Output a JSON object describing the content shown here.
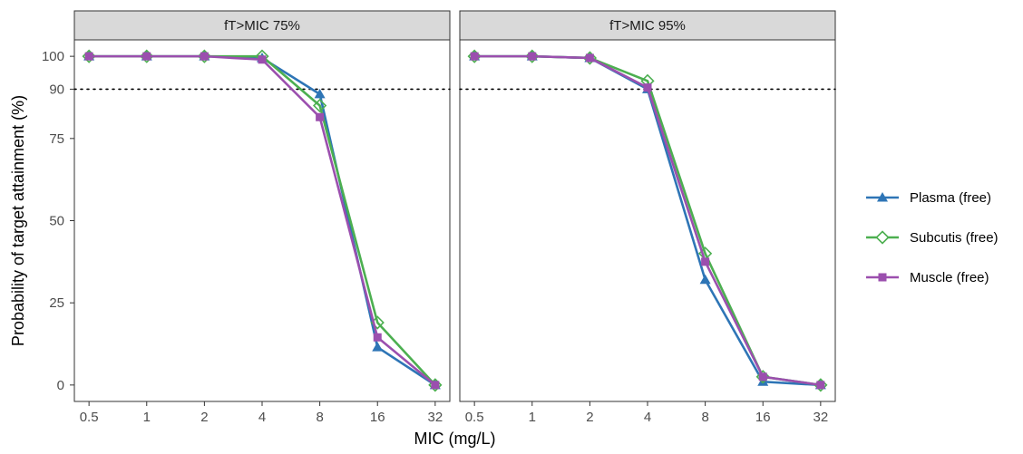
{
  "chart_data": {
    "type": "line",
    "ylabel": "Probability of target attainment (%)",
    "xlabel": "MIC (mg/L)",
    "x_categories": [
      "0.5",
      "1",
      "2",
      "4",
      "8",
      "16",
      "32"
    ],
    "y_ticks": [
      0,
      25,
      50,
      75,
      90,
      100
    ],
    "ylim": [
      -5,
      105
    ],
    "reference_line": {
      "y": 90,
      "style": "dotted"
    },
    "legend_position": "right",
    "colors": {
      "Plasma (free)": "#2e75b6",
      "Subcutis (free)": "#4caf50",
      "Muscle (free)": "#9b4fae"
    },
    "markers": {
      "Plasma (free)": "triangle",
      "Subcutis (free)": "diamond-open",
      "Muscle (free)": "square"
    },
    "panels": [
      {
        "strip": "fT>MIC 75%",
        "series": [
          {
            "name": "Plasma (free)",
            "values": [
              100,
              100,
              100,
              99.5,
              88.5,
              11.5,
              0
            ]
          },
          {
            "name": "Subcutis (free)",
            "values": [
              100,
              100,
              100,
              100,
              85,
              19,
              0
            ]
          },
          {
            "name": "Muscle (free)",
            "values": [
              100,
              100,
              100,
              99,
              81.5,
              14.5,
              0
            ]
          }
        ]
      },
      {
        "strip": "fT>MIC 95%",
        "series": [
          {
            "name": "Plasma (free)",
            "values": [
              100,
              100,
              99.5,
              90,
              32,
              1,
              0
            ]
          },
          {
            "name": "Subcutis (free)",
            "values": [
              100,
              100,
              99.5,
              92.5,
              40,
              2.5,
              0
            ]
          },
          {
            "name": "Muscle (free)",
            "values": [
              100,
              100,
              99.5,
              90.5,
              37.5,
              2.5,
              0
            ]
          }
        ]
      }
    ]
  }
}
